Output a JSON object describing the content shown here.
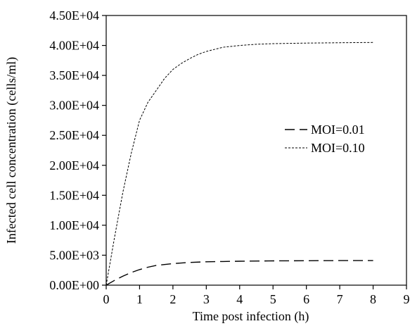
{
  "chart_data": {
    "type": "line",
    "title": "",
    "xlabel": "Time post infection (h)",
    "ylabel": "Infected cell concentration (cells/ml)",
    "xlim": [
      0,
      9
    ],
    "ylim": [
      0,
      45000
    ],
    "x_ticks": [
      0,
      1,
      2,
      3,
      4,
      5,
      6,
      7,
      8,
      9
    ],
    "y_ticks": [
      0,
      5000,
      10000,
      15000,
      20000,
      25000,
      30000,
      35000,
      40000,
      45000
    ],
    "x_tick_labels": [
      "0",
      "1",
      "2",
      "3",
      "4",
      "5",
      "6",
      "7",
      "8",
      "9"
    ],
    "y_tick_labels": [
      "0.00E+00",
      "5.00E+03",
      "1.00E+04",
      "1.50E+04",
      "2.00E+04",
      "2.50E+04",
      "3.00E+04",
      "3.50E+04",
      "4.00E+04",
      "4.50E+04"
    ],
    "grid": false,
    "legend_position": "right",
    "series": [
      {
        "name": "MOI=0.01",
        "line_style": "long-dash",
        "color": "#000000",
        "x": [
          0,
          0.25,
          0.5,
          0.75,
          1,
          1.25,
          1.5,
          2,
          2.5,
          3,
          3.5,
          4,
          5,
          6,
          7,
          8
        ],
        "y": [
          0,
          800,
          1500,
          2100,
          2600,
          3000,
          3300,
          3600,
          3800,
          3900,
          3950,
          4000,
          4050,
          4080,
          4100,
          4100
        ]
      },
      {
        "name": "MOI=0.10",
        "line_style": "fine-dash",
        "color": "#000000",
        "x": [
          0,
          0.25,
          0.5,
          0.75,
          1,
          1.25,
          1.5,
          1.75,
          2,
          2.25,
          2.5,
          2.75,
          3,
          3.5,
          4,
          4.5,
          5,
          6,
          7,
          8
        ],
        "y": [
          0,
          8000,
          15500,
          22000,
          27500,
          30500,
          32500,
          34500,
          36000,
          37000,
          37800,
          38500,
          39000,
          39700,
          40000,
          40200,
          40300,
          40400,
          40450,
          40500
        ]
      }
    ]
  }
}
